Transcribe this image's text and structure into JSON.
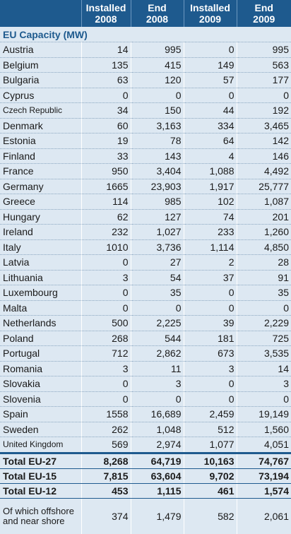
{
  "header": {
    "columns": [
      {
        "line1": "",
        "line2": ""
      },
      {
        "line1": "Installed",
        "line2": "2008"
      },
      {
        "line1": "End",
        "line2": "2008"
      },
      {
        "line1": "Installed",
        "line2": "2009"
      },
      {
        "line1": "End",
        "line2": "2009"
      }
    ]
  },
  "section_title": "EU Capacity (MW)",
  "rows": [
    {
      "country": "Austria",
      "inst2008": "14",
      "end2008": "995",
      "inst2009": "0",
      "end2009": "995"
    },
    {
      "country": "Belgium",
      "inst2008": "135",
      "end2008": "415",
      "inst2009": "149",
      "end2009": "563"
    },
    {
      "country": "Bulgaria",
      "inst2008": "63",
      "end2008": "120",
      "inst2009": "57",
      "end2009": "177"
    },
    {
      "country": "Cyprus",
      "inst2008": "0",
      "end2008": "0",
      "inst2009": "0",
      "end2009": "0"
    },
    {
      "country": "Czech Republic",
      "inst2008": "34",
      "end2008": "150",
      "inst2009": "44",
      "end2009": "192"
    },
    {
      "country": "Denmark",
      "inst2008": "60",
      "end2008": "3,163",
      "inst2009": "334",
      "end2009": "3,465"
    },
    {
      "country": "Estonia",
      "inst2008": "19",
      "end2008": "78",
      "inst2009": "64",
      "end2009": "142"
    },
    {
      "country": "Finland",
      "inst2008": "33",
      "end2008": "143",
      "inst2009": "4",
      "end2009": "146"
    },
    {
      "country": "France",
      "inst2008": "950",
      "end2008": "3,404",
      "inst2009": "1,088",
      "end2009": "4,492"
    },
    {
      "country": "Germany",
      "inst2008": "1665",
      "end2008": "23,903",
      "inst2009": "1,917",
      "end2009": "25,777"
    },
    {
      "country": "Greece",
      "inst2008": "114",
      "end2008": "985",
      "inst2009": "102",
      "end2009": "1,087"
    },
    {
      "country": "Hungary",
      "inst2008": "62",
      "end2008": "127",
      "inst2009": "74",
      "end2009": "201"
    },
    {
      "country": "Ireland",
      "inst2008": "232",
      "end2008": "1,027",
      "inst2009": "233",
      "end2009": "1,260"
    },
    {
      "country": "Italy",
      "inst2008": "1010",
      "end2008": "3,736",
      "inst2009": "1,114",
      "end2009": "4,850"
    },
    {
      "country": "Latvia",
      "inst2008": "0",
      "end2008": "27",
      "inst2009": "2",
      "end2009": "28"
    },
    {
      "country": "Lithuania",
      "inst2008": "3",
      "end2008": "54",
      "inst2009": "37",
      "end2009": "91"
    },
    {
      "country": "Luxembourg",
      "inst2008": "0",
      "end2008": "35",
      "inst2009": "0",
      "end2009": "35"
    },
    {
      "country": "Malta",
      "inst2008": "0",
      "end2008": "0",
      "inst2009": "0",
      "end2009": "0"
    },
    {
      "country": "Netherlands",
      "inst2008": "500",
      "end2008": "2,225",
      "inst2009": "39",
      "end2009": "2,229"
    },
    {
      "country": "Poland",
      "inst2008": "268",
      "end2008": "544",
      "inst2009": "181",
      "end2009": "725"
    },
    {
      "country": "Portugal",
      "inst2008": "712",
      "end2008": "2,862",
      "inst2009": "673",
      "end2009": "3,535"
    },
    {
      "country": "Romania",
      "inst2008": "3",
      "end2008": "11",
      "inst2009": "3",
      "end2009": "14"
    },
    {
      "country": "Slovakia",
      "inst2008": "0",
      "end2008": "3",
      "inst2009": "0",
      "end2009": "3"
    },
    {
      "country": "Slovenia",
      "inst2008": "0",
      "end2008": "0",
      "inst2009": "0",
      "end2009": "0"
    },
    {
      "country": "Spain",
      "inst2008": "1558",
      "end2008": "16,689",
      "inst2009": "2,459",
      "end2009": "19,149"
    },
    {
      "country": "Sweden",
      "inst2008": "262",
      "end2008": "1,048",
      "inst2009": "512",
      "end2009": "1,560"
    },
    {
      "country": "United Kingdom",
      "inst2008": "569",
      "end2008": "2,974",
      "inst2009": "1,077",
      "end2009": "4,051"
    }
  ],
  "totals": [
    {
      "label": "Total EU-27",
      "inst2008": "8,268",
      "end2008": "64,719",
      "inst2009": "10,163",
      "end2009": "74,767"
    },
    {
      "label": "Total EU-15",
      "inst2008": "7,815",
      "end2008": "63,604",
      "inst2009": "9,702",
      "end2009": "73,194"
    },
    {
      "label": "Total EU-12",
      "inst2008": "453",
      "end2008": "1,115",
      "inst2009": "461",
      "end2009": "1,574"
    }
  ],
  "offshore": {
    "label": "Of which offshore and near shore",
    "inst2008": "374",
    "end2008": "1,479",
    "inst2009": "582",
    "end2009": "2,061"
  },
  "colors": {
    "header_bg": "#1e5a8e",
    "row_bg": "#dde8f2",
    "accent": "#1e5a8e"
  }
}
